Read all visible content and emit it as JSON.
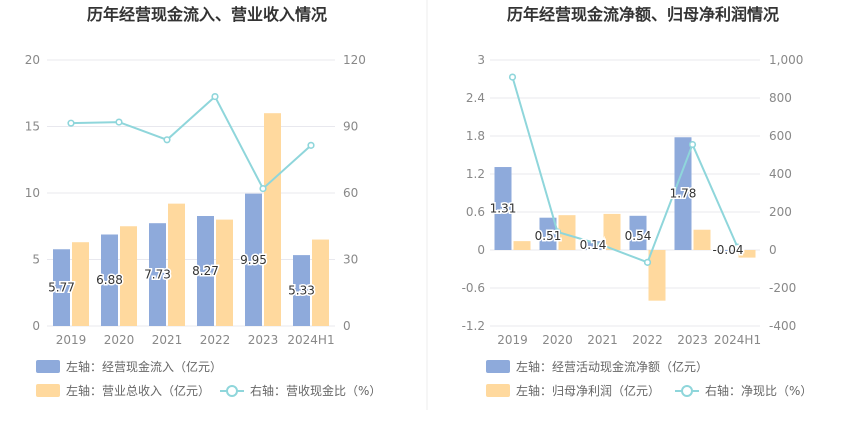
{
  "colors": {
    "bar_left": "#8eaadb",
    "bar_right": "#ffd99e",
    "line": "#8fd6db",
    "grid": "#e8e8ee",
    "axis_text": "#888888",
    "title": "#333333",
    "divider": "#eeeeee"
  },
  "chart_data": [
    {
      "type": "bar",
      "title": "历年经营现金流入、营业收入情况",
      "categories": [
        "2019",
        "2020",
        "2021",
        "2022",
        "2023",
        "2024H1"
      ],
      "left_axis": {
        "ylim": [
          0,
          20
        ],
        "ticks": [
          "0",
          "5",
          "10",
          "15",
          "20"
        ]
      },
      "right_axis": {
        "ylim": [
          0,
          120
        ],
        "ticks": [
          "0",
          "30",
          "60",
          "90",
          "120"
        ]
      },
      "series": [
        {
          "name": "左轴：经营现金流入（亿元）",
          "axis": "left",
          "kind": "bar",
          "values": [
            5.77,
            6.88,
            7.73,
            8.27,
            9.95,
            5.33
          ],
          "labels": [
            "5.77",
            "6.88",
            "7.73",
            "8.27",
            "9.95",
            "5.33"
          ]
        },
        {
          "name": "左轴：营业总收入（亿元）",
          "axis": "left",
          "kind": "bar",
          "values": [
            6.3,
            7.5,
            9.2,
            8.0,
            16.0,
            6.5
          ]
        },
        {
          "name": "右轴：营收现金比（%）",
          "axis": "right",
          "kind": "line",
          "values": [
            91.5,
            92.0,
            84.0,
            103.5,
            62.0,
            81.5
          ]
        }
      ],
      "legend_placement": "bottom"
    },
    {
      "type": "bar",
      "title": "历年经营现金流净额、归母净利润情况",
      "categories": [
        "2019",
        "2020",
        "2021",
        "2022",
        "2023",
        "2024H1"
      ],
      "left_axis": {
        "ylim": [
          -1.2,
          3
        ],
        "ticks": [
          "-1.2",
          "-0.6",
          "0",
          "0.6",
          "1.2",
          "1.8",
          "2.4",
          "3"
        ]
      },
      "right_axis": {
        "ylim": [
          -400,
          1000
        ],
        "ticks": [
          "-400",
          "-200",
          "0",
          "200",
          "400",
          "600",
          "800",
          "1,000"
        ]
      },
      "series": [
        {
          "name": "左轴：经营活动现金流净额（亿元）",
          "axis": "left",
          "kind": "bar",
          "values": [
            1.31,
            0.51,
            0.14,
            0.54,
            1.78,
            -0.04
          ],
          "labels": [
            "1.31",
            "0.51",
            "0.14",
            "0.54",
            "1.78",
            "-0.04"
          ]
        },
        {
          "name": "左轴：归母净利润（亿元）",
          "axis": "left",
          "kind": "bar",
          "values": [
            0.14,
            0.55,
            0.57,
            -0.8,
            0.32,
            -0.12
          ]
        },
        {
          "name": "右轴：净现比（%）",
          "axis": "right",
          "kind": "line",
          "values": [
            910,
            95,
            25,
            -65,
            555,
            15
          ]
        }
      ],
      "legend_placement": "bottom"
    }
  ]
}
